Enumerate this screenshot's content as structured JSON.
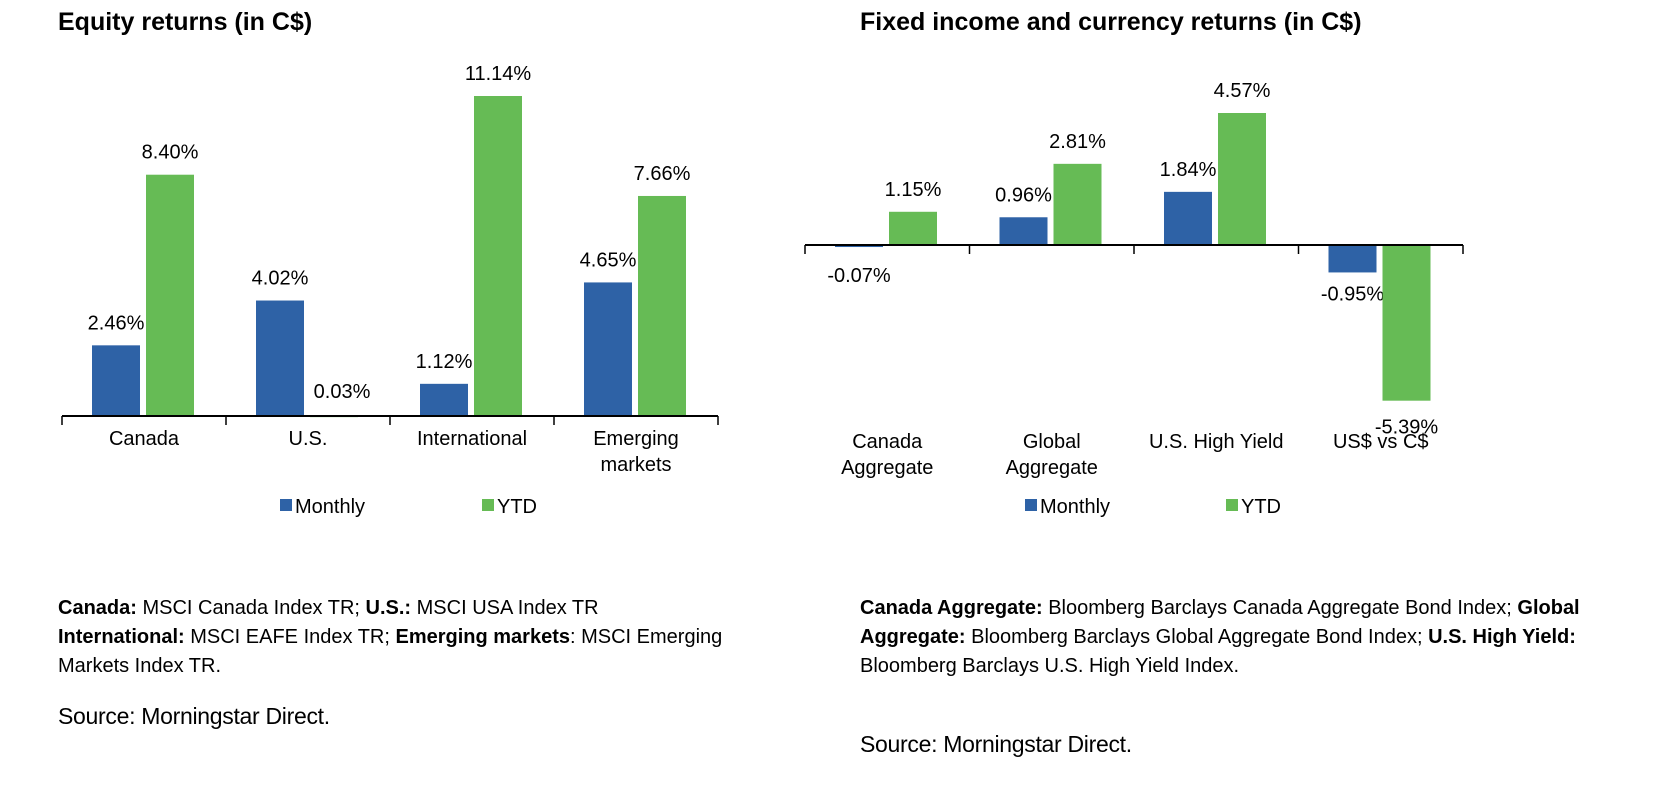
{
  "colors": {
    "monthly": "#2E62A6",
    "ytd": "#66BB55",
    "axis": "#000000"
  },
  "chart_data": [
    {
      "type": "bar",
      "title": "Equity returns (in C$)",
      "categories": [
        "Canada",
        "U.S.",
        "International",
        "Emerging markets"
      ],
      "series": [
        {
          "name": "Monthly",
          "values": [
            2.46,
            4.02,
            1.12,
            4.65
          ],
          "labels": [
            "2.46%",
            "4.02%",
            "1.12%",
            "4.65%"
          ]
        },
        {
          "name": "YTD",
          "values": [
            8.4,
            0.03,
            11.14,
            7.66
          ],
          "labels": [
            "8.40%",
            "0.03%",
            "11.14%",
            "7.66%"
          ]
        }
      ],
      "ylim": [
        0,
        11.14
      ],
      "grid": false,
      "legend": "bottom",
      "footnote": [
        {
          "b": "Canada:",
          "t": " MSCI Canada Index TR; "
        },
        {
          "b": "U.S.:",
          "t": " MSCI USA Index TR "
        },
        {
          "b": "International:",
          "t": " MSCI EAFE Index TR; "
        },
        {
          "b": "Emerging markets",
          "t": ": MSCI Emerging Markets Index TR."
        }
      ],
      "source": "Source: Morningstar Direct."
    },
    {
      "type": "bar",
      "title": "Fixed income and currency returns (in C$)",
      "categories": [
        "Canada Aggregate",
        "Global Aggregate",
        "U.S. High Yield",
        "US$ vs C$"
      ],
      "series": [
        {
          "name": "Monthly",
          "values": [
            -0.07,
            0.96,
            1.84,
            -0.95
          ],
          "labels": [
            "-0.07%",
            "0.96%",
            "1.84%",
            "-0.95%"
          ]
        },
        {
          "name": "YTD",
          "values": [
            1.15,
            2.81,
            4.57,
            -5.39
          ],
          "labels": [
            "1.15%",
            "2.81%",
            "4.57%",
            "-5.39%"
          ]
        }
      ],
      "ylim": [
        -5.39,
        4.57
      ],
      "grid": false,
      "legend": "bottom",
      "footnote": [
        {
          "b": "Canada Aggregate:",
          "t": " Bloomberg Barclays Canada Aggregate Bond Index; "
        },
        {
          "b": "Global Aggregate:",
          "t": " Bloomberg Barclays Global Aggregate Bond Index; "
        },
        {
          "b": "U.S. High Yield:",
          "t": " Bloomberg Barclays U.S. High Yield Index."
        }
      ],
      "source": "Source: Morningstar Direct."
    }
  ]
}
